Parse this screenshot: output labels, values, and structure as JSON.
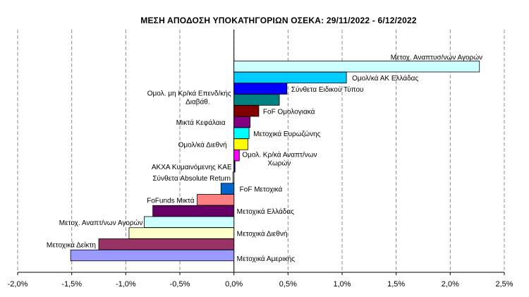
{
  "chart_data": {
    "type": "bar",
    "orientation": "horizontal",
    "title": "ΜΕΣΗ ΑΠΟΔΟΣΗ  ΥΠΟΚΑΤΗΓΟΡΙΩΝ  ΟΣΕΚΑ:  29/11/2022 - 6/12/2022",
    "xlabel": "",
    "ylabel": "",
    "xlim": [
      -2.0,
      2.5
    ],
    "x_ticks": [
      "-2,0%",
      "-1,5%",
      "-1,0%",
      "-0,5%",
      "0,0%",
      "0,5%",
      "1,0%",
      "1,5%",
      "2,0%",
      "2,5%"
    ],
    "x_tick_values": [
      -2.0,
      -1.5,
      -1.0,
      -0.5,
      0.0,
      0.5,
      1.0,
      1.5,
      2.0,
      2.5
    ],
    "grid": "vertical",
    "bars": [
      {
        "label": "Μετοχ. Αναπτυσ/νων Αγορών",
        "value": 2.27,
        "color": "#ccffff"
      },
      {
        "label": "Ομολ/κά ΑΚ Ελλάδας",
        "value": 1.04,
        "color": "#00ccff"
      },
      {
        "label": "Σύνθετα Ειδικού Τύπου",
        "value": 0.49,
        "color": "#0000ff"
      },
      {
        "label": "Ομολ. μη Κρ/κά Επενδ/κής Διαβάθ.",
        "value": 0.42,
        "color": "#008080"
      },
      {
        "label": "FoF Ομολογιακά",
        "value": 0.23,
        "color": "#800000"
      },
      {
        "label": "Μικτά Κεφάλαια",
        "value": 0.15,
        "color": "#800080"
      },
      {
        "label": "Μετοχικά Ευρωζώνης",
        "value": 0.14,
        "color": "#00ffff"
      },
      {
        "label": "Ομολ/κά Διεθνή",
        "value": 0.13,
        "color": "#ffff00"
      },
      {
        "label": "Ομολ. Κρ/κά Αναπτ/νων Χωρών",
        "value": 0.05,
        "color": "#ff00ff"
      },
      {
        "label": "ΑΚΧΑ Κυμαινόμενης ΚΑΕ",
        "value": 0.01,
        "color": "#000080"
      },
      {
        "label": "Σύνθετα Absolute Return",
        "value": -0.01,
        "color": "#ffffff"
      },
      {
        "label": "FoF Μετοχικά",
        "value": -0.12,
        "color": "#0066cc"
      },
      {
        "label": "FoFunds Μικτά",
        "value": -0.34,
        "color": "#ff8080"
      },
      {
        "label": "Μετοχικά Ελλάδας",
        "value": -0.75,
        "color": "#660066"
      },
      {
        "label": "Μετοχ. Αναπτ/νων Αγορών",
        "value": -0.83,
        "color": "#ccffff"
      },
      {
        "label": "Μετοχικά Διεθνή",
        "value": -0.97,
        "color": "#ffffcc"
      },
      {
        "label": "Μετοχικά Δείκτη",
        "value": -1.25,
        "color": "#993366"
      },
      {
        "label": "Μετοχικά Αμερικής",
        "value": -1.51,
        "color": "#9999ff"
      }
    ]
  }
}
